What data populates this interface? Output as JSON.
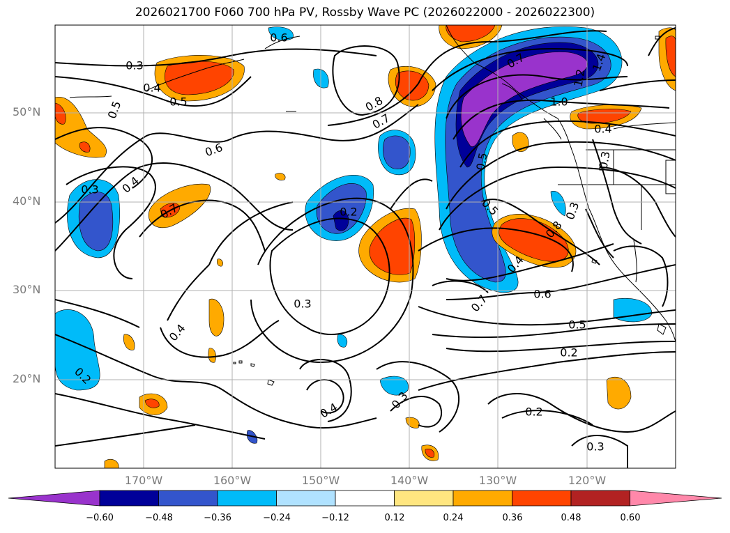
{
  "title": "2026021700 F060 700 hPa PV, Rossby Wave PC (2026022000 - 2026022300)",
  "map": {
    "lat_labels": [
      "50°N",
      "40°N",
      "30°N",
      "20°N"
    ],
    "lon_labels": [
      "170°W",
      "160°W",
      "150°W",
      "140°W",
      "130°W",
      "120°W"
    ],
    "contour_labels": [
      "0.3",
      "0.4",
      "0.5",
      "0.5",
      "0.6",
      "0.3",
      "0.4",
      "0.7",
      "0.8",
      "0.7",
      "0.7",
      "1.0",
      "1.2",
      "1.4",
      "0.4",
      "0.3",
      "0.5",
      "0.8",
      "0.4",
      "0.6",
      "0.7",
      "0.5",
      "0.2",
      "0.2",
      "0.3",
      "0.2",
      "0.3",
      "0.4",
      "0.3",
      "0.2",
      "0.4",
      "0.6",
      "0.3",
      "0.5"
    ]
  },
  "colorbar": {
    "ticks": [
      "−0.60",
      "−0.48",
      "−0.36",
      "−0.24",
      "−0.12",
      "0.12",
      "0.24",
      "0.36",
      "0.48",
      "0.60"
    ],
    "colors": [
      "#9933cc",
      "#000099",
      "#3355cc",
      "#00bbf9",
      "#b0e2ff",
      "#ffffff",
      "#ffe680",
      "#ffaa00",
      "#ff4400",
      "#b22222",
      "#ff88aa"
    ]
  },
  "chart_data": {
    "type": "contour",
    "title": "2026021700 F060 700 hPa PV, Rossby Wave PC (2026022000 - 2026022300)",
    "xlim": [
      -180,
      -110
    ],
    "ylim": [
      10,
      60
    ],
    "shaded_levels": [
      -0.6,
      -0.48,
      -0.36,
      -0.24,
      -0.12,
      0.12,
      0.24,
      0.36,
      0.48,
      0.6
    ],
    "contour_line_values": [
      0.2,
      0.3,
      0.4,
      0.5,
      0.6,
      0.7,
      0.8,
      1.0,
      1.2,
      1.4
    ]
  }
}
